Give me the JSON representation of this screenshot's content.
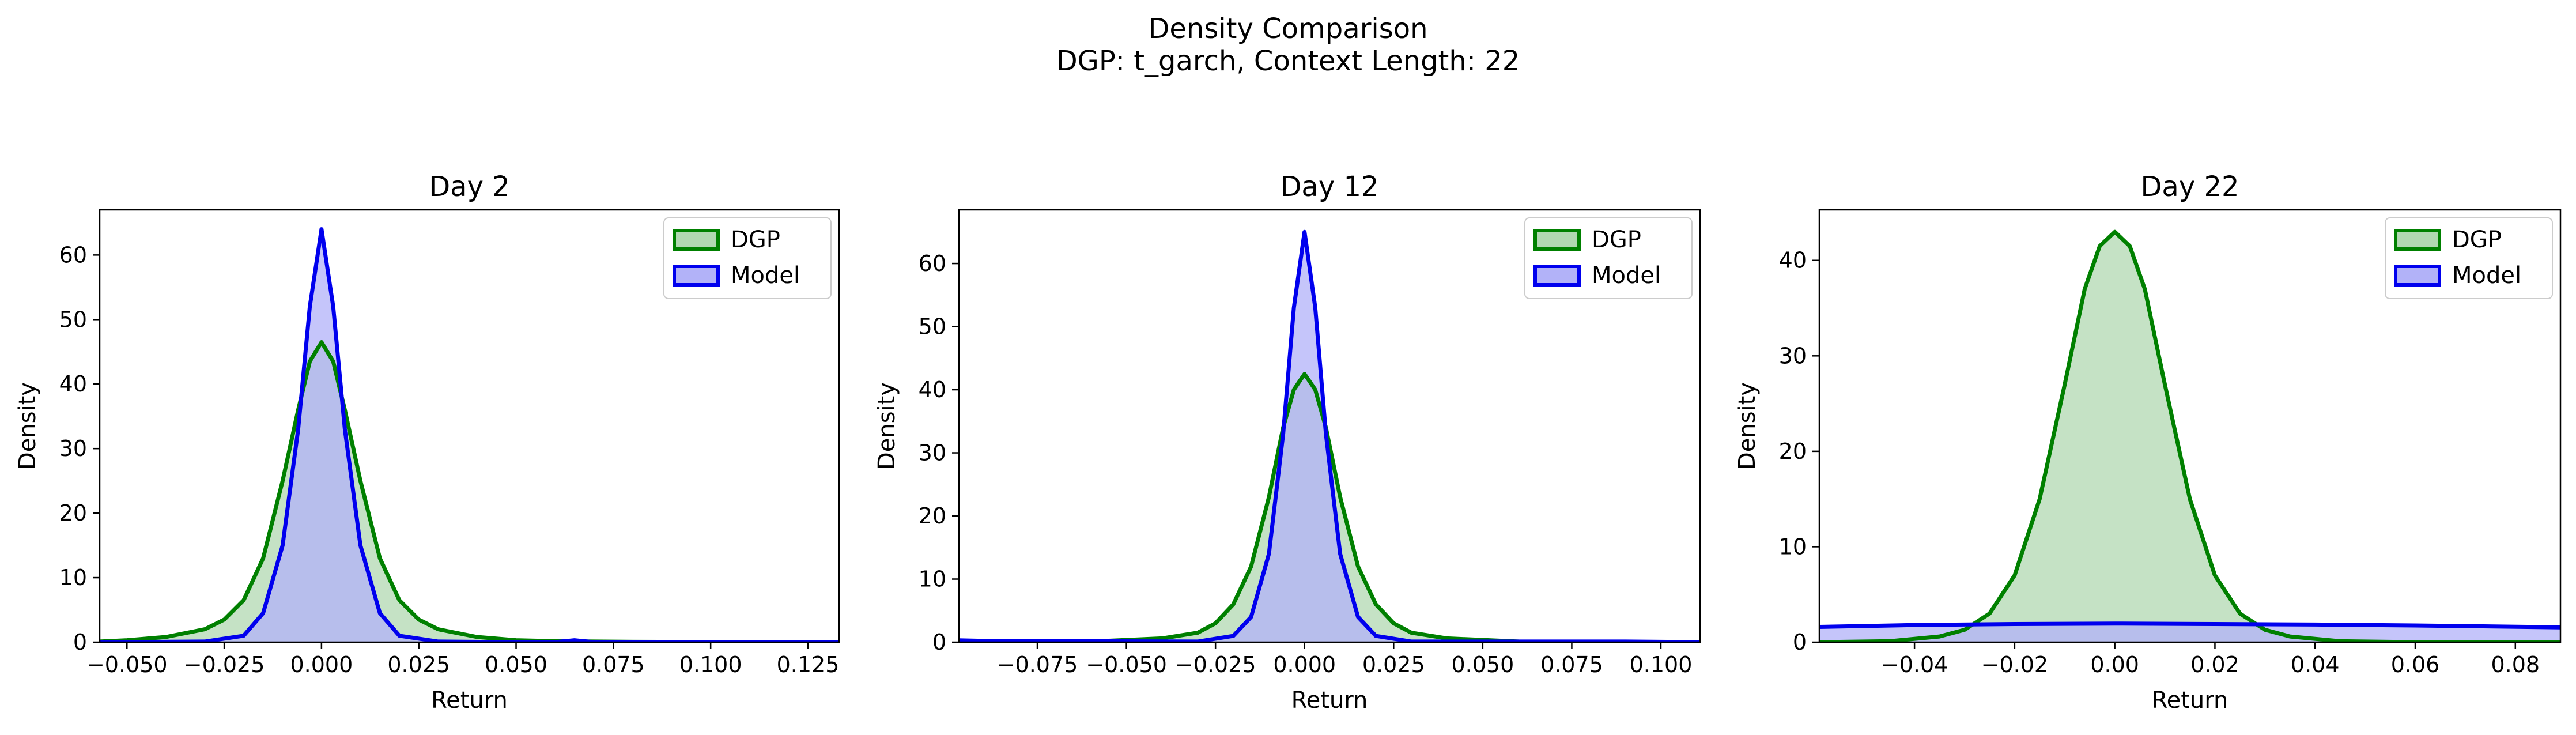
{
  "figure": {
    "title": "Density Comparison",
    "subtitle": "DGP: t_garch, Context Length: 22"
  },
  "chart_data": [
    {
      "type": "area",
      "title": "Day 2",
      "xlabel": "Return",
      "ylabel": "Density",
      "xlim": [
        -0.057,
        0.133
      ],
      "ylim": [
        0,
        67
      ],
      "xticks": [
        -0.05,
        -0.025,
        0.0,
        0.025,
        0.05,
        0.075,
        0.1,
        0.125
      ],
      "xtick_labels": [
        "−0.050",
        "−0.025",
        "0.000",
        "0.025",
        "0.050",
        "0.075",
        "0.100",
        "0.125"
      ],
      "yticks": [
        0,
        10,
        20,
        30,
        40,
        50,
        60
      ],
      "ytick_labels": [
        "0",
        "10",
        "20",
        "30",
        "40",
        "50",
        "60"
      ],
      "grid": false,
      "legend": "top-right",
      "series": [
        {
          "name": "DGP",
          "color": "#008000",
          "fill": "#b2d8b2",
          "x": [
            -0.057,
            -0.05,
            -0.04,
            -0.03,
            -0.025,
            -0.02,
            -0.015,
            -0.01,
            -0.006,
            -0.003,
            0.0,
            0.003,
            0.006,
            0.01,
            0.015,
            0.02,
            0.025,
            0.03,
            0.04,
            0.05,
            0.06,
            0.08,
            0.1,
            0.133
          ],
          "y": [
            0.1,
            0.3,
            0.8,
            2.0,
            3.5,
            6.5,
            13.0,
            25.0,
            36.0,
            43.5,
            46.5,
            43.5,
            36.0,
            25.0,
            13.0,
            6.5,
            3.5,
            2.0,
            0.8,
            0.3,
            0.15,
            0.05,
            0.02,
            0.0
          ]
        },
        {
          "name": "Model",
          "color": "#0000ee",
          "fill": "#b2b2f8",
          "x": [
            -0.057,
            -0.03,
            -0.02,
            -0.015,
            -0.01,
            -0.006,
            -0.003,
            0.0,
            0.003,
            0.006,
            0.01,
            0.015,
            0.02,
            0.03,
            0.05,
            0.06,
            0.065,
            0.07,
            0.1,
            0.133
          ],
          "y": [
            0.0,
            0.1,
            1.0,
            4.5,
            15.0,
            33.0,
            52.0,
            64.0,
            52.0,
            33.0,
            15.0,
            4.5,
            1.0,
            0.1,
            0.0,
            0.0,
            0.3,
            0.0,
            0.0,
            0.0
          ]
        }
      ]
    },
    {
      "type": "area",
      "title": "Day 12",
      "xlabel": "Return",
      "ylabel": "Density",
      "xlim": [
        -0.097,
        0.111
      ],
      "ylim": [
        0,
        68.5
      ],
      "xticks": [
        -0.075,
        -0.05,
        -0.025,
        0.0,
        0.025,
        0.05,
        0.075,
        0.1
      ],
      "xtick_labels": [
        "−0.075",
        "−0.050",
        "−0.025",
        "0.000",
        "0.025",
        "0.050",
        "0.075",
        "0.100"
      ],
      "yticks": [
        0,
        10,
        20,
        30,
        40,
        50,
        60
      ],
      "ytick_labels": [
        "0",
        "10",
        "20",
        "30",
        "40",
        "50",
        "60"
      ],
      "grid": false,
      "legend": "top-right",
      "series": [
        {
          "name": "DGP",
          "color": "#008000",
          "fill": "#b2d8b2",
          "x": [
            -0.097,
            -0.06,
            -0.04,
            -0.03,
            -0.025,
            -0.02,
            -0.015,
            -0.01,
            -0.006,
            -0.003,
            0.0,
            0.003,
            0.006,
            0.01,
            0.015,
            0.02,
            0.025,
            0.03,
            0.04,
            0.06,
            0.08,
            0.111
          ],
          "y": [
            0.0,
            0.1,
            0.6,
            1.5,
            3.0,
            6.0,
            12.0,
            23.0,
            34.0,
            40.0,
            42.5,
            40.0,
            34.0,
            23.0,
            12.0,
            6.0,
            3.0,
            1.5,
            0.6,
            0.1,
            0.05,
            0.0
          ]
        },
        {
          "name": "Model",
          "color": "#0000ee",
          "fill": "#b2b2f8",
          "x": [
            -0.097,
            -0.09,
            -0.03,
            -0.02,
            -0.015,
            -0.01,
            -0.006,
            -0.003,
            0.0,
            0.003,
            0.006,
            0.01,
            0.015,
            0.02,
            0.03,
            0.09,
            0.111
          ],
          "y": [
            0.3,
            0.2,
            0.1,
            1.0,
            4.0,
            14.0,
            33.0,
            53.0,
            65.0,
            53.0,
            33.0,
            14.0,
            4.0,
            1.0,
            0.1,
            0.1,
            0.0
          ]
        }
      ]
    },
    {
      "type": "area",
      "title": "Day 22",
      "xlabel": "Return",
      "ylabel": "Density",
      "xlim": [
        -0.059,
        0.089
      ],
      "ylim": [
        0,
        45.3
      ],
      "xticks": [
        -0.04,
        -0.02,
        0.0,
        0.02,
        0.04,
        0.06,
        0.08
      ],
      "xtick_labels": [
        "−0.04",
        "−0.02",
        "0.00",
        "0.02",
        "0.04",
        "0.06",
        "0.08"
      ],
      "yticks": [
        0,
        10,
        20,
        30,
        40
      ],
      "ytick_labels": [
        "0",
        "10",
        "20",
        "30",
        "40"
      ],
      "grid": false,
      "legend": "top-right",
      "series": [
        {
          "name": "DGP",
          "color": "#008000",
          "fill": "#b2d8b2",
          "x": [
            -0.059,
            -0.045,
            -0.035,
            -0.03,
            -0.025,
            -0.02,
            -0.015,
            -0.01,
            -0.006,
            -0.003,
            0.0,
            0.003,
            0.006,
            0.01,
            0.015,
            0.02,
            0.025,
            0.03,
            0.035,
            0.045,
            0.06,
            0.089
          ],
          "y": [
            0.0,
            0.1,
            0.6,
            1.3,
            3.0,
            7.0,
            15.0,
            27.0,
            37.0,
            41.5,
            43.0,
            41.5,
            37.0,
            27.0,
            15.0,
            7.0,
            3.0,
            1.3,
            0.6,
            0.1,
            0.0,
            0.0
          ]
        },
        {
          "name": "Model",
          "color": "#0000ee",
          "fill": "#b2b2f8",
          "x": [
            -0.059,
            -0.04,
            -0.02,
            0.0,
            0.02,
            0.04,
            0.06,
            0.089
          ],
          "y": [
            1.6,
            1.8,
            1.9,
            1.95,
            1.9,
            1.85,
            1.75,
            1.55
          ]
        }
      ]
    }
  ]
}
